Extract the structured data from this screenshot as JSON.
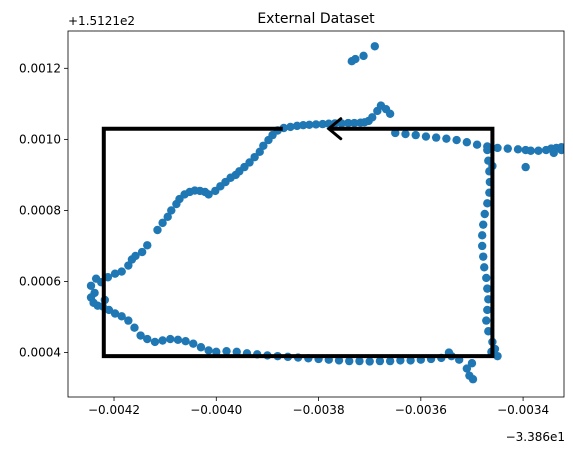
{
  "chart_data": {
    "type": "scatter",
    "title": "External Dataset",
    "xlabel": "",
    "ylabel": "",
    "xlim": [
      -0.00429,
      -0.00332
    ],
    "ylim": [
      0.000275,
      0.001305
    ],
    "x_offset_label": "−3.386e1",
    "y_offset_label": "+1.5121e2",
    "x_ticks": [
      {
        "value": -0.0042,
        "label": "−0.0042"
      },
      {
        "value": -0.004,
        "label": "−0.0040"
      },
      {
        "value": -0.0038,
        "label": "−0.0038"
      },
      {
        "value": -0.0036,
        "label": "−0.0036"
      },
      {
        "value": -0.0034,
        "label": "−0.0034"
      }
    ],
    "y_ticks": [
      {
        "value": 0.0004,
        "label": "0.0004"
      },
      {
        "value": 0.0006,
        "label": "0.0006"
      },
      {
        "value": 0.0008,
        "label": "0.0008"
      },
      {
        "value": 0.001,
        "label": "0.0010"
      },
      {
        "value": 0.0012,
        "label": "0.0012"
      }
    ],
    "grid": false,
    "marker_color": "#1f77b4",
    "path_color": "#000000",
    "points": [
      [
        -0.004245,
        0.000588
      ],
      [
        -0.004238,
        0.000568
      ],
      [
        -0.004235,
        0.000608
      ],
      [
        -0.004225,
        0.000598
      ],
      [
        -0.004218,
        0.000548
      ],
      [
        -0.004212,
        0.000612
      ],
      [
        -0.004198,
        0.000622
      ],
      [
        -0.004185,
        0.000628
      ],
      [
        -0.004172,
        0.000645
      ],
      [
        -0.004165,
        0.000662
      ],
      [
        -0.004158,
        0.000672
      ],
      [
        -0.004145,
        0.000683
      ],
      [
        -0.004135,
        0.000702
      ],
      [
        -0.004115,
        0.000745
      ],
      [
        -0.004105,
        0.000765
      ],
      [
        -0.004095,
        0.000782
      ],
      [
        -0.004088,
        0.0008
      ],
      [
        -0.004078,
        0.000818
      ],
      [
        -0.004072,
        0.000832
      ],
      [
        -0.004062,
        0.000845
      ],
      [
        -0.004052,
        0.000852
      ],
      [
        -0.004042,
        0.000856
      ],
      [
        -0.004032,
        0.000855
      ],
      [
        -0.004022,
        0.000852
      ],
      [
        -0.004015,
        0.000845
      ],
      [
        -0.004002,
        0.000855
      ],
      [
        -0.003992,
        0.000868
      ],
      [
        -0.003982,
        0.00088
      ],
      [
        -0.003972,
        0.000892
      ],
      [
        -0.003962,
        0.0009
      ],
      [
        -0.003955,
        0.00091
      ],
      [
        -0.003945,
        0.000922
      ],
      [
        -0.003935,
        0.000935
      ],
      [
        -0.003925,
        0.00095
      ],
      [
        -0.003915,
        0.000965
      ],
      [
        -0.003908,
        0.000982
      ],
      [
        -0.003898,
        0.000998
      ],
      [
        -0.00389,
        0.001012
      ],
      [
        -0.00388,
        0.001025
      ],
      [
        -0.003868,
        0.001032
      ],
      [
        -0.003855,
        0.001035
      ],
      [
        -0.003842,
        0.001038
      ],
      [
        -0.00383,
        0.00104
      ],
      [
        -0.003818,
        0.001041
      ],
      [
        -0.003805,
        0.001042
      ],
      [
        -0.003792,
        0.001043
      ],
      [
        -0.00378,
        0.001044
      ],
      [
        -0.003768,
        0.001045
      ],
      [
        -0.003755,
        0.001045
      ],
      [
        -0.003742,
        0.001046
      ],
      [
        -0.00373,
        0.001046
      ],
      [
        -0.003718,
        0.001047
      ],
      [
        -0.00371,
        0.001048
      ],
      [
        -0.003702,
        0.001052
      ],
      [
        -0.003695,
        0.001062
      ],
      [
        -0.003685,
        0.00108
      ],
      [
        -0.003678,
        0.001095
      ],
      [
        -0.003668,
        0.001085
      ],
      [
        -0.00366,
        0.001072
      ],
      [
        -0.003735,
        0.00122
      ],
      [
        -0.003728,
        0.001226
      ],
      [
        -0.003712,
        0.001235
      ],
      [
        -0.00369,
        0.001262
      ],
      [
        -0.00365,
        0.001018
      ],
      [
        -0.00363,
        0.001015
      ],
      [
        -0.00361,
        0.001012
      ],
      [
        -0.00359,
        0.001008
      ],
      [
        -0.00357,
        0.001005
      ],
      [
        -0.00355,
        0.001002
      ],
      [
        -0.00353,
        0.000998
      ],
      [
        -0.00351,
        0.000992
      ],
      [
        -0.00349,
        0.000985
      ],
      [
        -0.00347,
        0.00098
      ],
      [
        -0.00345,
        0.000976
      ],
      [
        -0.00343,
        0.000974
      ],
      [
        -0.00341,
        0.000972
      ],
      [
        -0.003395,
        0.00097
      ],
      [
        -0.003385,
        0.000968
      ],
      [
        -0.00337,
        0.000968
      ],
      [
        -0.003355,
        0.00097
      ],
      [
        -0.003345,
        0.000974
      ],
      [
        -0.003335,
        0.000976
      ],
      [
        -0.003325,
        0.000978
      ],
      [
        -0.003315,
        0.00098
      ],
      [
        -0.003305,
        0.000982
      ],
      [
        -0.00346,
        0.000925
      ],
      [
        -0.003395,
        0.000922
      ],
      [
        -0.00334,
        0.000962
      ],
      [
        -0.003325,
        0.00097
      ],
      [
        -0.00331,
        0.00098
      ],
      [
        -0.003305,
        0.000985
      ],
      [
        -0.00347,
        0.00097
      ],
      [
        -0.003468,
        0.00094
      ],
      [
        -0.003466,
        0.00091
      ],
      [
        -0.003465,
        0.00088
      ],
      [
        -0.003466,
        0.00085
      ],
      [
        -0.00347,
        0.00082
      ],
      [
        -0.003475,
        0.00079
      ],
      [
        -0.003478,
        0.00076
      ],
      [
        -0.00348,
        0.00073
      ],
      [
        -0.00348,
        0.0007
      ],
      [
        -0.003478,
        0.00067
      ],
      [
        -0.003476,
        0.00064
      ],
      [
        -0.003472,
        0.00061
      ],
      [
        -0.00347,
        0.00058
      ],
      [
        -0.003468,
        0.00055
      ],
      [
        -0.00347,
        0.00052
      ],
      [
        -0.003472,
        0.00049
      ],
      [
        -0.003468,
        0.00046
      ],
      [
        -0.00346,
        0.00043
      ],
      [
        -0.003455,
        0.00041
      ],
      [
        -0.00345,
        0.00039
      ],
      [
        -0.003462,
        0.000402
      ],
      [
        -0.0035,
        0.00037
      ],
      [
        -0.00351,
        0.000355
      ],
      [
        -0.003505,
        0.000335
      ],
      [
        -0.003498,
        0.000325
      ],
      [
        -0.003525,
        0.00038
      ],
      [
        -0.00354,
        0.00039
      ],
      [
        -0.003545,
        0.0004
      ],
      [
        -0.00356,
        0.000385
      ],
      [
        -0.00358,
        0.000382
      ],
      [
        -0.0036,
        0.00038
      ],
      [
        -0.00362,
        0.000378
      ],
      [
        -0.00364,
        0.000378
      ],
      [
        -0.00366,
        0.000376
      ],
      [
        -0.00368,
        0.000376
      ],
      [
        -0.0037,
        0.000375
      ],
      [
        -0.00372,
        0.000376
      ],
      [
        -0.00374,
        0.000376
      ],
      [
        -0.00376,
        0.000378
      ],
      [
        -0.00378,
        0.00038
      ],
      [
        -0.0038,
        0.000382
      ],
      [
        -0.00382,
        0.000384
      ],
      [
        -0.00384,
        0.000386
      ],
      [
        -0.00386,
        0.000388
      ],
      [
        -0.00388,
        0.00039
      ],
      [
        -0.0039,
        0.000392
      ],
      [
        -0.00392,
        0.000395
      ],
      [
        -0.00394,
        0.000398
      ],
      [
        -0.00396,
        0.000402
      ],
      [
        -0.00398,
        0.000404
      ],
      [
        -0.004,
        0.000402
      ],
      [
        -0.004015,
        0.000406
      ],
      [
        -0.00403,
        0.000415
      ],
      [
        -0.004045,
        0.000425
      ],
      [
        -0.00406,
        0.000432
      ],
      [
        -0.004075,
        0.000436
      ],
      [
        -0.00409,
        0.000438
      ],
      [
        -0.004105,
        0.000434
      ],
      [
        -0.00412,
        0.00043
      ],
      [
        -0.004135,
        0.000438
      ],
      [
        -0.004148,
        0.000448
      ],
      [
        -0.00416,
        0.00047
      ],
      [
        -0.004172,
        0.00049
      ],
      [
        -0.004185,
        0.000502
      ],
      [
        -0.004198,
        0.00051
      ],
      [
        -0.00421,
        0.00052
      ],
      [
        -0.004222,
        0.00053
      ],
      [
        -0.004232,
        0.000532
      ],
      [
        -0.00424,
        0.00054
      ],
      [
        -0.004245,
        0.000555
      ]
    ],
    "path": [
      [
        -0.00387,
        0.00103
      ],
      [
        -0.00422,
        0.00103
      ],
      [
        -0.00422,
        0.00039
      ],
      [
        -0.00346,
        0.00039
      ],
      [
        -0.00346,
        0.00103
      ],
      [
        -0.00378,
        0.00103
      ]
    ],
    "arrow_tip": [
      -0.00378,
      0.00103
    ]
  }
}
